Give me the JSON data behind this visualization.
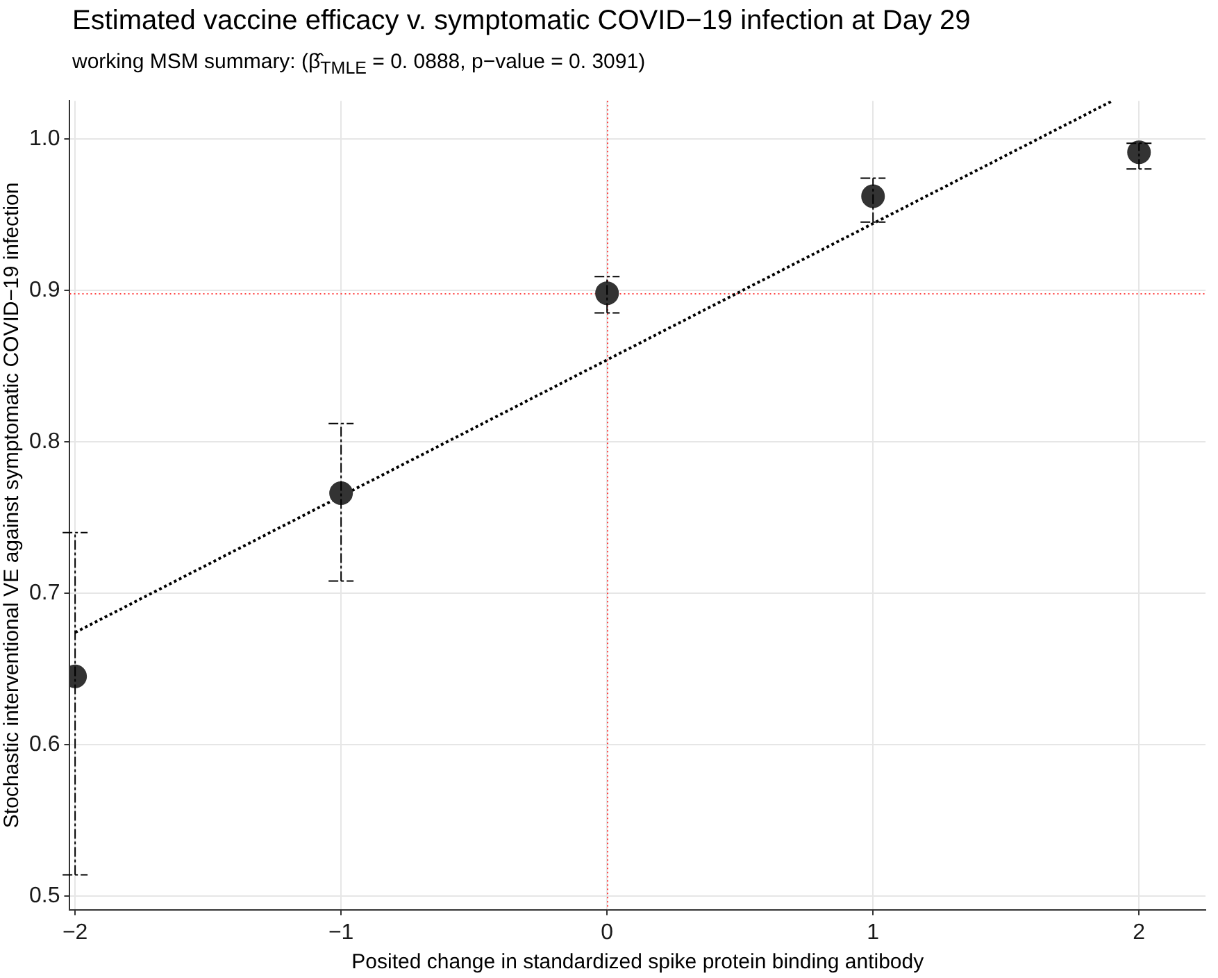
{
  "chart_data": {
    "type": "scatter",
    "title": "Estimated vaccine efficacy v. symptomatic COVID−19 infection at Day 29",
    "subtitle": "working MSM summary: (β̂$_{TMLE}$ = 0. 0888, p−value = 0. 3091)",
    "xlabel": "Posited change in standardized spike protein binding antibody",
    "ylabel": "Stochastic interventional VE against symptomatic COVID−19 infection",
    "xlim": [
      -2.02,
      2.25
    ],
    "xticks": [
      {
        "value": -2,
        "label": "−2"
      },
      {
        "value": -1,
        "label": "−1"
      },
      0,
      1,
      2
    ],
    "ylim": [
      0.491,
      1.025
    ],
    "yticks": [
      {
        "value": 0.5,
        "label": "0.5"
      },
      {
        "value": 0.6,
        "label": "0.6"
      },
      {
        "value": 0.7,
        "label": "0.7"
      },
      {
        "value": 0.8,
        "label": "0.8"
      },
      {
        "value": 0.9,
        "label": "0.9"
      },
      {
        "value": 1.0,
        "label": "1.0"
      }
    ],
    "grid": true,
    "legend": false,
    "ref_lines": [
      {
        "axis": "x",
        "value": 0,
        "color": "#ff4040",
        "line_style": "dotted"
      },
      {
        "axis": "y",
        "value": 0.898,
        "color": "#ff4040",
        "line_style": "dotted"
      }
    ],
    "series": [
      {
        "type": "scatter",
        "marker": "circle",
        "color": "#333333",
        "x": [
          -2,
          -1,
          0,
          1,
          2
        ],
        "values": [
          0.645,
          0.766,
          0.898,
          0.962,
          0.991
        ],
        "errors": [
          [
            0.514,
            0.74
          ],
          [
            0.708,
            0.812
          ],
          [
            0.885,
            0.909
          ],
          [
            0.945,
            0.974
          ],
          [
            0.98,
            0.997
          ]
        ]
      },
      {
        "type": "line",
        "marker": "none",
        "color": "#000000",
        "line_style": "dotted",
        "x": [
          -2,
          1.9
        ],
        "values": [
          0.674,
          1.025
        ]
      }
    ]
  }
}
